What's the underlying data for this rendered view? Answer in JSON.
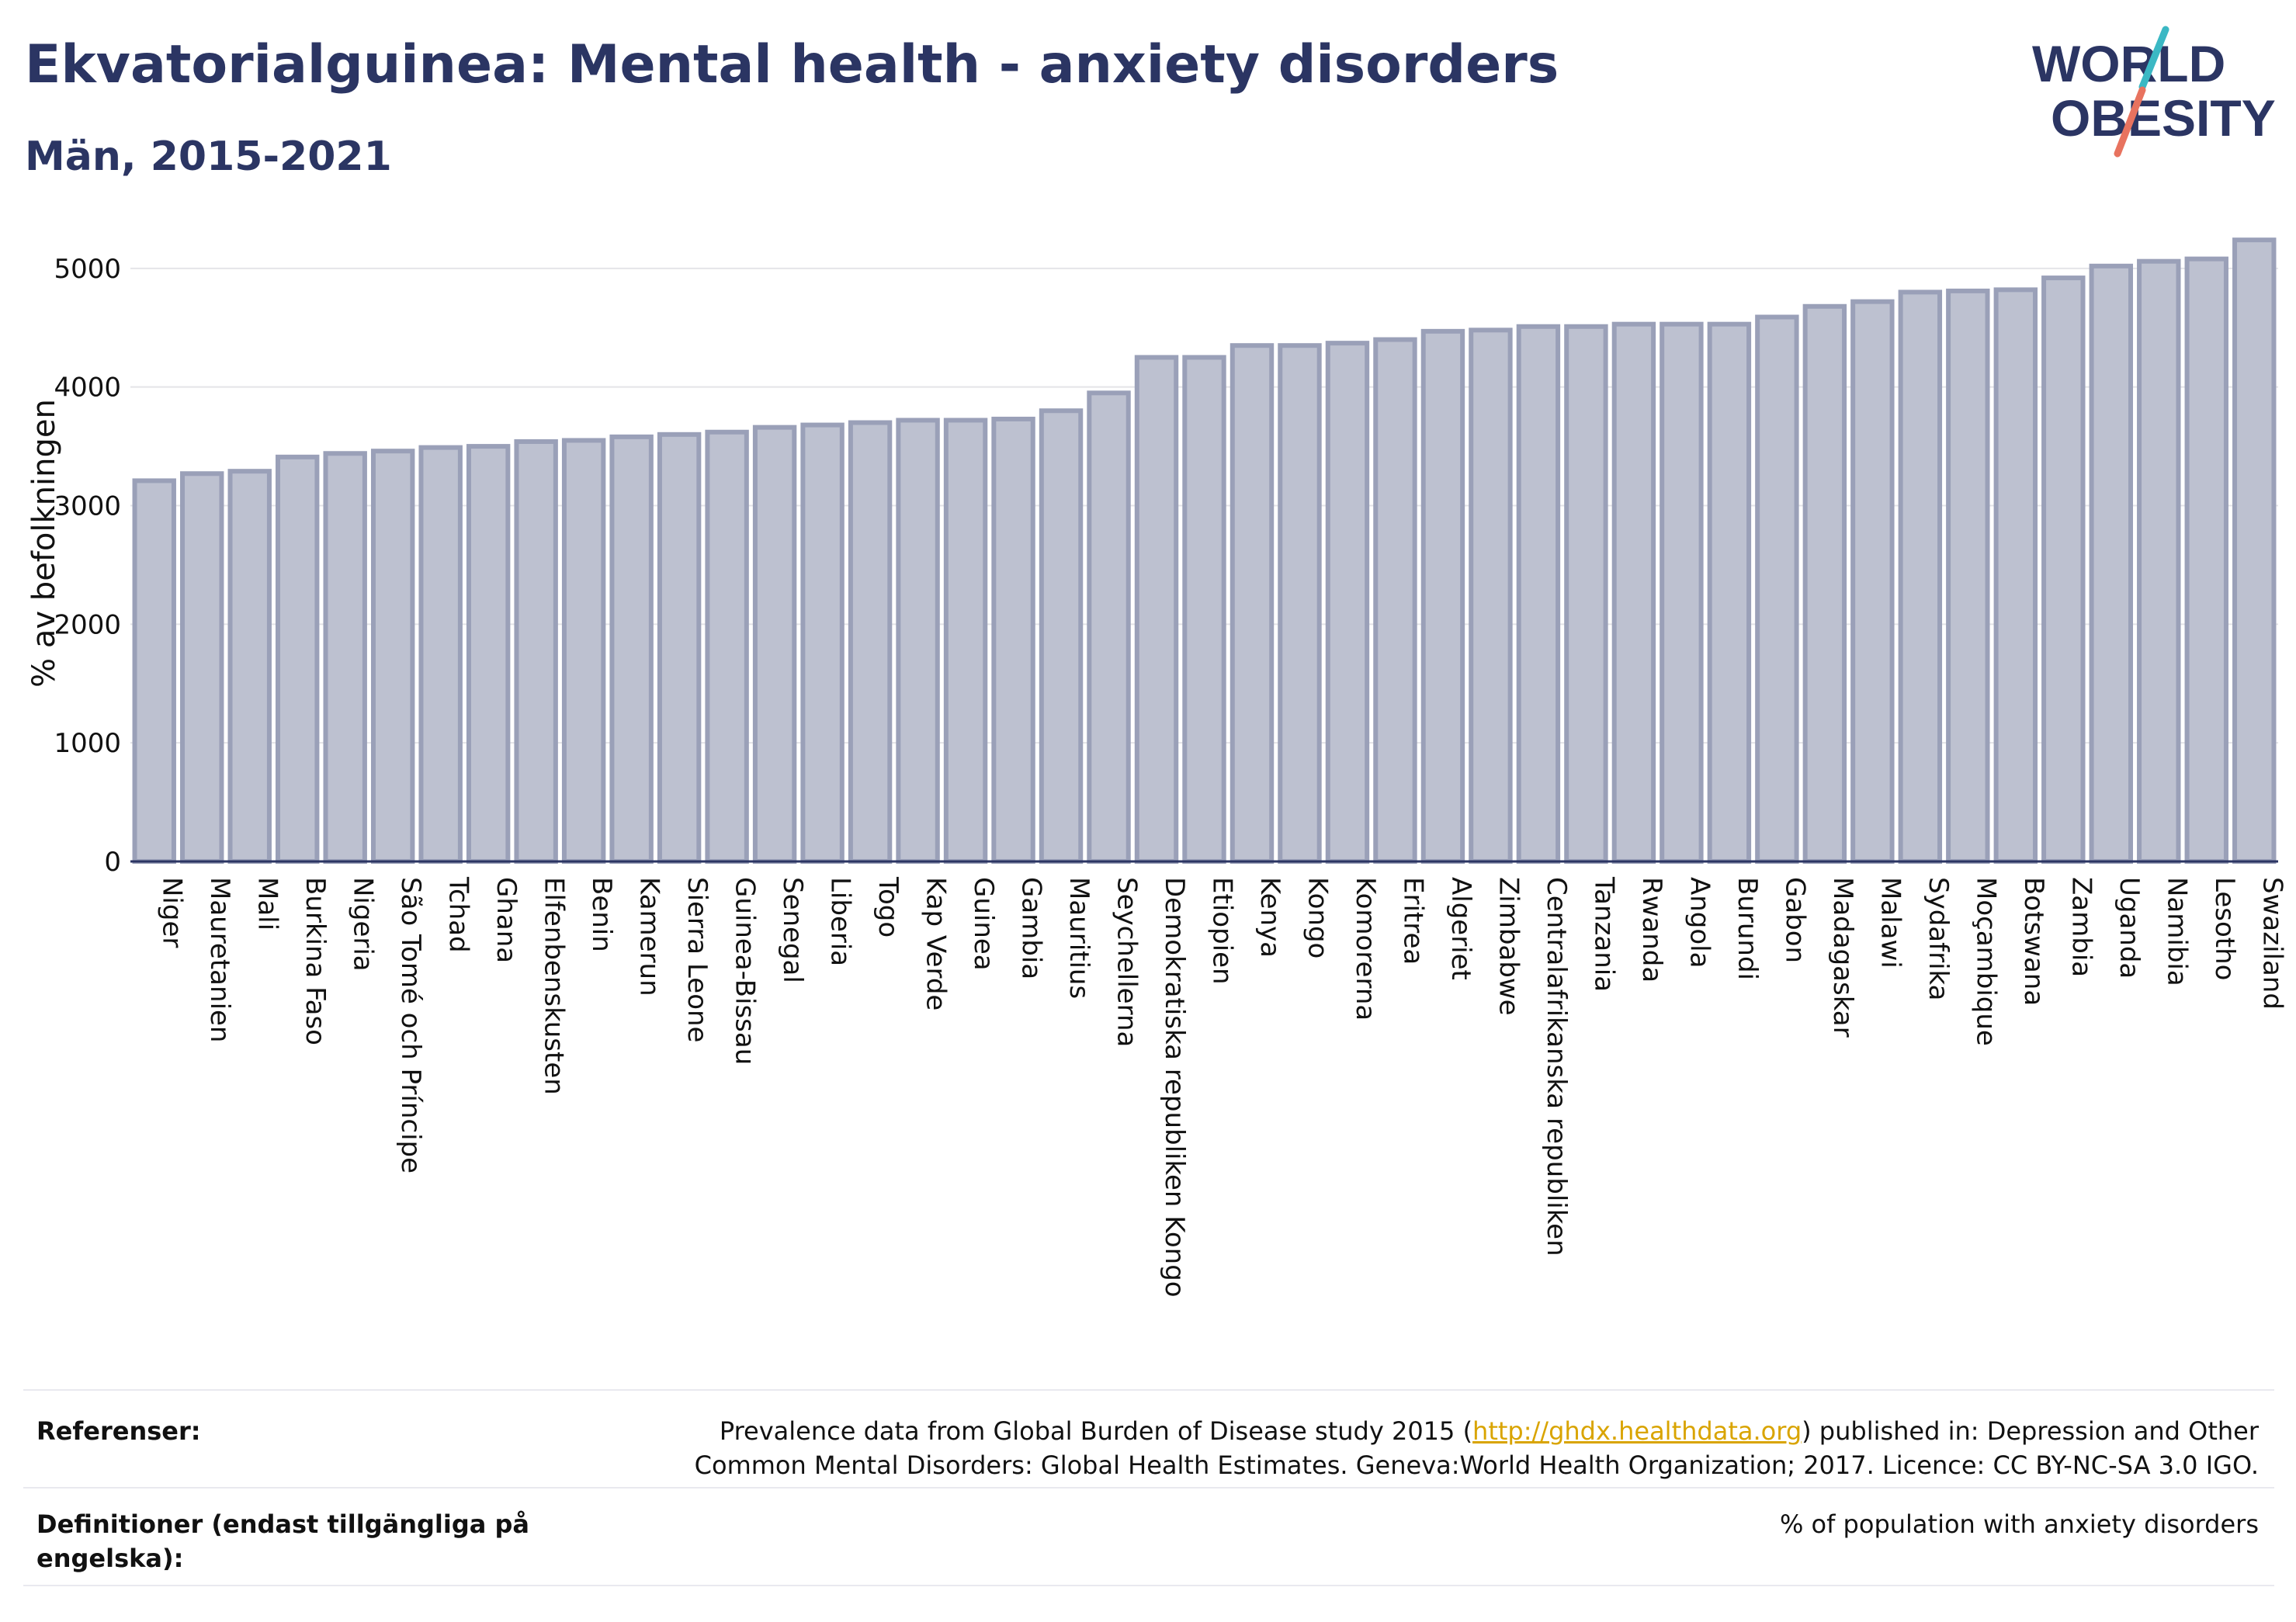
{
  "header": {
    "title": "Ekvatorialguinea: Mental health - anxiety disorders",
    "subtitle": "Män, 2015-2021"
  },
  "logo": {
    "line1": "WORLD",
    "line2": "OBESITY",
    "colors": {
      "text": "#2b3563",
      "slash_top": "#3bb8c4",
      "slash_bottom": "#e8735f"
    }
  },
  "chart_data": {
    "type": "bar",
    "ylabel": "% av befolkningen",
    "xlabel": "",
    "ylim": [
      0,
      5300
    ],
    "yticks": [
      0,
      1000,
      2000,
      3000,
      4000,
      5000
    ],
    "grid": true,
    "bar_color": "#bdc1d0",
    "bar_edge_color": "#9aa0b8",
    "categories": [
      "Niger",
      "Mauretanien",
      "Mali",
      "Burkina Faso",
      "Nigeria",
      "São Tomé och Príncipe",
      "Tchad",
      "Ghana",
      "Elfenbenskusten",
      "Benin",
      "Kamerun",
      "Sierra Leone",
      "Guinea-Bissau",
      "Senegal",
      "Liberia",
      "Togo",
      "Kap Verde",
      "Guinea",
      "Gambia",
      "Mauritius",
      "Seychellerna",
      "Demokratiska republiken Kongo",
      "Etiopien",
      "Kenya",
      "Kongo",
      "Komorerna",
      "Eritrea",
      "Algeriet",
      "Zimbabwe",
      "Centralafrikanska republiken",
      "Tanzania",
      "Rwanda",
      "Angola",
      "Burundi",
      "Gabon",
      "Madagaskar",
      "Malawi",
      "Sydafrika",
      "Moçambique",
      "Botswana",
      "Zambia",
      "Uganda",
      "Namibia",
      "Lesotho",
      "Swaziland"
    ],
    "values": [
      3210,
      3270,
      3290,
      3410,
      3440,
      3460,
      3490,
      3500,
      3540,
      3550,
      3580,
      3600,
      3620,
      3660,
      3680,
      3700,
      3720,
      3720,
      3730,
      3800,
      3950,
      4250,
      4250,
      4350,
      4350,
      4370,
      4400,
      4470,
      4480,
      4510,
      4510,
      4530,
      4530,
      4530,
      4590,
      4680,
      4720,
      4800,
      4810,
      4820,
      4920,
      5020,
      5060,
      5080,
      5240
    ]
  },
  "references": {
    "label": "Referenser:",
    "text_before": "Prevalence data from Global Burden of Disease study 2015 (",
    "link": "http://ghdx.healthdata.org",
    "text_after": ") published in: Depression and Other Common Mental Disorders: Global Health Estimates. Geneva:World Health Organization; 2017. Licence: CC BY-NC-SA 3.0 IGO.",
    "link_color": "#d9a400"
  },
  "definitions": {
    "label": "Definitioner (endast tillgängliga på engelska):",
    "text": "% of population with anxiety disorders"
  }
}
